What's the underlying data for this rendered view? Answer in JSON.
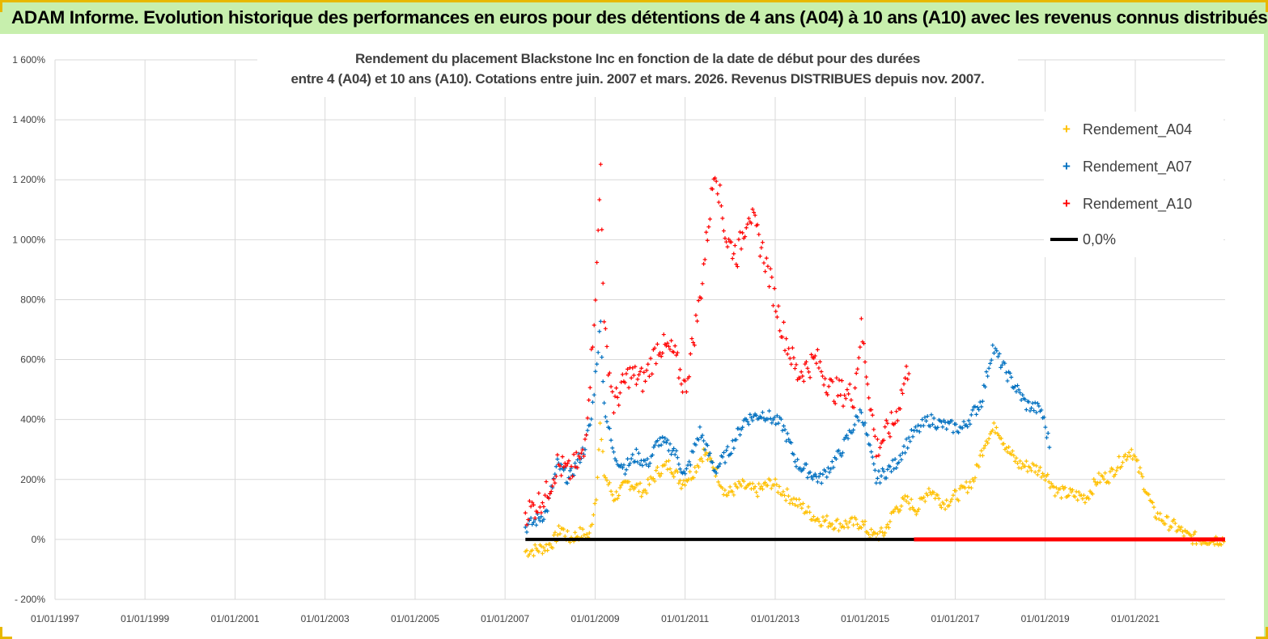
{
  "banner": {
    "title": "ADAM Informe. Evolution historique des performances en euros pour des détentions de 4 ans (A04) à 10 ans (A10) avec les revenus connus distribués"
  },
  "chart_data": {
    "type": "scatter",
    "title_line1": "Rendement du placement Blackstone Inc en fonction de la date de début pour des durées",
    "title_line2": "entre 4 (A04) et 10 ans (A10).  Cotations entre juin. 2007 et mars. 2026. Revenus DISTRIBUES depuis nov. 2007.",
    "ylim": [
      -200,
      1600
    ],
    "yticks": [
      -200,
      0,
      200,
      400,
      600,
      800,
      1000,
      1200,
      1400,
      1600
    ],
    "ytick_labels": [
      "- 200%",
      "0%",
      "200%",
      "400%",
      "600%",
      "800%",
      "1 000%",
      "1 200%",
      "1 400%",
      "1 600%"
    ],
    "xlim": [
      "1997-01-01",
      "2022-12-31"
    ],
    "xtick_labels": [
      "01/01/1997",
      "01/01/1999",
      "01/01/2001",
      "01/01/2003",
      "01/01/2005",
      "01/01/2007",
      "01/01/2009",
      "01/01/2011",
      "01/01/2013",
      "01/01/2015",
      "01/01/2017",
      "01/01/2019",
      "01/01/2021"
    ],
    "grid": true,
    "legend_position": "top-right",
    "series": [
      {
        "name": "Rendement_A04",
        "color": "#ffc000",
        "marker": "plus",
        "points": [
          [
            "2007-06-15",
            -40
          ],
          [
            "2007-09-01",
            -35
          ],
          [
            "2007-12-01",
            -25
          ],
          [
            "2008-02-01",
            -5
          ],
          [
            "2008-04-01",
            40
          ],
          [
            "2008-06-01",
            0
          ],
          [
            "2008-09-01",
            20
          ],
          [
            "2008-11-15",
            10
          ],
          [
            "2009-01-10",
            150
          ],
          [
            "2009-02-10",
            380
          ],
          [
            "2009-03-15",
            220
          ],
          [
            "2009-06-01",
            140
          ],
          [
            "2009-10-01",
            190
          ],
          [
            "2010-02-01",
            160
          ],
          [
            "2010-06-01",
            230
          ],
          [
            "2010-09-01",
            250
          ],
          [
            "2010-12-01",
            190
          ],
          [
            "2011-03-01",
            220
          ],
          [
            "2011-06-01",
            290
          ],
          [
            "2011-08-15",
            250
          ],
          [
            "2011-12-01",
            150
          ],
          [
            "2012-04-01",
            180
          ],
          [
            "2012-08-01",
            160
          ],
          [
            "2012-12-01",
            190
          ],
          [
            "2013-06-01",
            130
          ],
          [
            "2013-12-01",
            70
          ],
          [
            "2014-06-01",
            50
          ],
          [
            "2014-12-01",
            55
          ],
          [
            "2015-03-01",
            10
          ],
          [
            "2015-06-01",
            20
          ],
          [
            "2015-09-01",
            100
          ],
          [
            "2015-12-01",
            130
          ],
          [
            "2016-03-01",
            100
          ],
          [
            "2016-06-01",
            170
          ],
          [
            "2016-10-01",
            120
          ],
          [
            "2017-03-01",
            160
          ],
          [
            "2017-06-01",
            200
          ],
          [
            "2017-09-01",
            330
          ],
          [
            "2017-12-01",
            380
          ],
          [
            "2018-03-01",
            300
          ],
          [
            "2018-06-01",
            250
          ],
          [
            "2018-10-01",
            240
          ],
          [
            "2019-01-01",
            220
          ],
          [
            "2019-04-01",
            160
          ],
          [
            "2019-08-01",
            150
          ],
          [
            "2019-12-01",
            140
          ],
          [
            "2020-03-01",
            200
          ],
          [
            "2020-06-01",
            210
          ],
          [
            "2020-09-01",
            260
          ],
          [
            "2020-12-01",
            300
          ],
          [
            "2021-03-01",
            200
          ],
          [
            "2021-06-01",
            90
          ],
          [
            "2021-09-01",
            60
          ],
          [
            "2021-12-01",
            40
          ],
          [
            "2022-03-01",
            10
          ],
          [
            "2022-06-01",
            0
          ],
          [
            "2022-12-31",
            0
          ]
        ]
      },
      {
        "name": "Rendement_A07",
        "color": "#0070c0",
        "marker": "plus",
        "points": [
          [
            "2007-06-15",
            40
          ],
          [
            "2007-09-01",
            60
          ],
          [
            "2007-12-01",
            90
          ],
          [
            "2008-03-01",
            250
          ],
          [
            "2008-06-01",
            200
          ],
          [
            "2008-10-01",
            300
          ],
          [
            "2008-12-01",
            400
          ],
          [
            "2009-01-15",
            600
          ],
          [
            "2009-02-15",
            720
          ],
          [
            "2009-03-15",
            450
          ],
          [
            "2009-06-01",
            280
          ],
          [
            "2009-09-01",
            240
          ],
          [
            "2009-12-01",
            280
          ],
          [
            "2010-03-01",
            250
          ],
          [
            "2010-06-01",
            330
          ],
          [
            "2010-10-01",
            300
          ],
          [
            "2011-01-01",
            210
          ],
          [
            "2011-05-01",
            360
          ],
          [
            "2011-09-01",
            230
          ],
          [
            "2012-01-01",
            300
          ],
          [
            "2012-05-01",
            400
          ],
          [
            "2012-10-01",
            420
          ],
          [
            "2013-03-01",
            380
          ],
          [
            "2013-07-01",
            250
          ],
          [
            "2014-01-01",
            200
          ],
          [
            "2014-06-01",
            280
          ],
          [
            "2014-12-01",
            430
          ],
          [
            "2015-04-01",
            200
          ],
          [
            "2015-09-01",
            250
          ],
          [
            "2016-01-01",
            340
          ],
          [
            "2016-06-01",
            400
          ],
          [
            "2016-10-01",
            380
          ],
          [
            "2017-03-01",
            370
          ],
          [
            "2017-08-01",
            460
          ],
          [
            "2017-11-01",
            640
          ],
          [
            "2018-03-01",
            550
          ],
          [
            "2018-08-01",
            450
          ],
          [
            "2018-12-01",
            430
          ],
          [
            "2019-02-15",
            300
          ]
        ]
      },
      {
        "name": "Rendement_A10",
        "color": "#ff0000",
        "marker": "plus",
        "points": [
          [
            "2007-06-15",
            90
          ],
          [
            "2007-09-01",
            110
          ],
          [
            "2007-12-01",
            150
          ],
          [
            "2008-03-01",
            250
          ],
          [
            "2008-06-01",
            220
          ],
          [
            "2008-10-01",
            280
          ],
          [
            "2008-12-01",
            600
          ],
          [
            "2009-01-15",
            900
          ],
          [
            "2009-02-15",
            1250
          ],
          [
            "2009-03-15",
            700
          ],
          [
            "2009-06-01",
            450
          ],
          [
            "2009-10-01",
            550
          ],
          [
            "2010-02-01",
            530
          ],
          [
            "2010-06-01",
            650
          ],
          [
            "2010-10-01",
            620
          ],
          [
            "2011-01-01",
            500
          ],
          [
            "2011-05-01",
            800
          ],
          [
            "2011-09-01",
            1250
          ],
          [
            "2011-12-01",
            1000
          ],
          [
            "2012-03-01",
            950
          ],
          [
            "2012-06-01",
            1100
          ],
          [
            "2012-10-01",
            950
          ],
          [
            "2013-03-01",
            700
          ],
          [
            "2013-07-01",
            550
          ],
          [
            "2013-12-01",
            600
          ],
          [
            "2014-04-01",
            500
          ],
          [
            "2014-10-01",
            480
          ],
          [
            "2014-12-01",
            700
          ],
          [
            "2015-04-01",
            300
          ],
          [
            "2015-09-01",
            400
          ],
          [
            "2016-01-01",
            600
          ]
        ]
      },
      {
        "name": "0,0%",
        "color": "#000000",
        "marker": "line",
        "points": [
          [
            "2007-06-15",
            0
          ],
          [
            "2022-12-31",
            0
          ]
        ]
      }
    ],
    "zero_line_highlight": {
      "color": "#ff0000",
      "from": "2016-02-01",
      "to": "2022-12-31",
      "value": 0
    }
  }
}
